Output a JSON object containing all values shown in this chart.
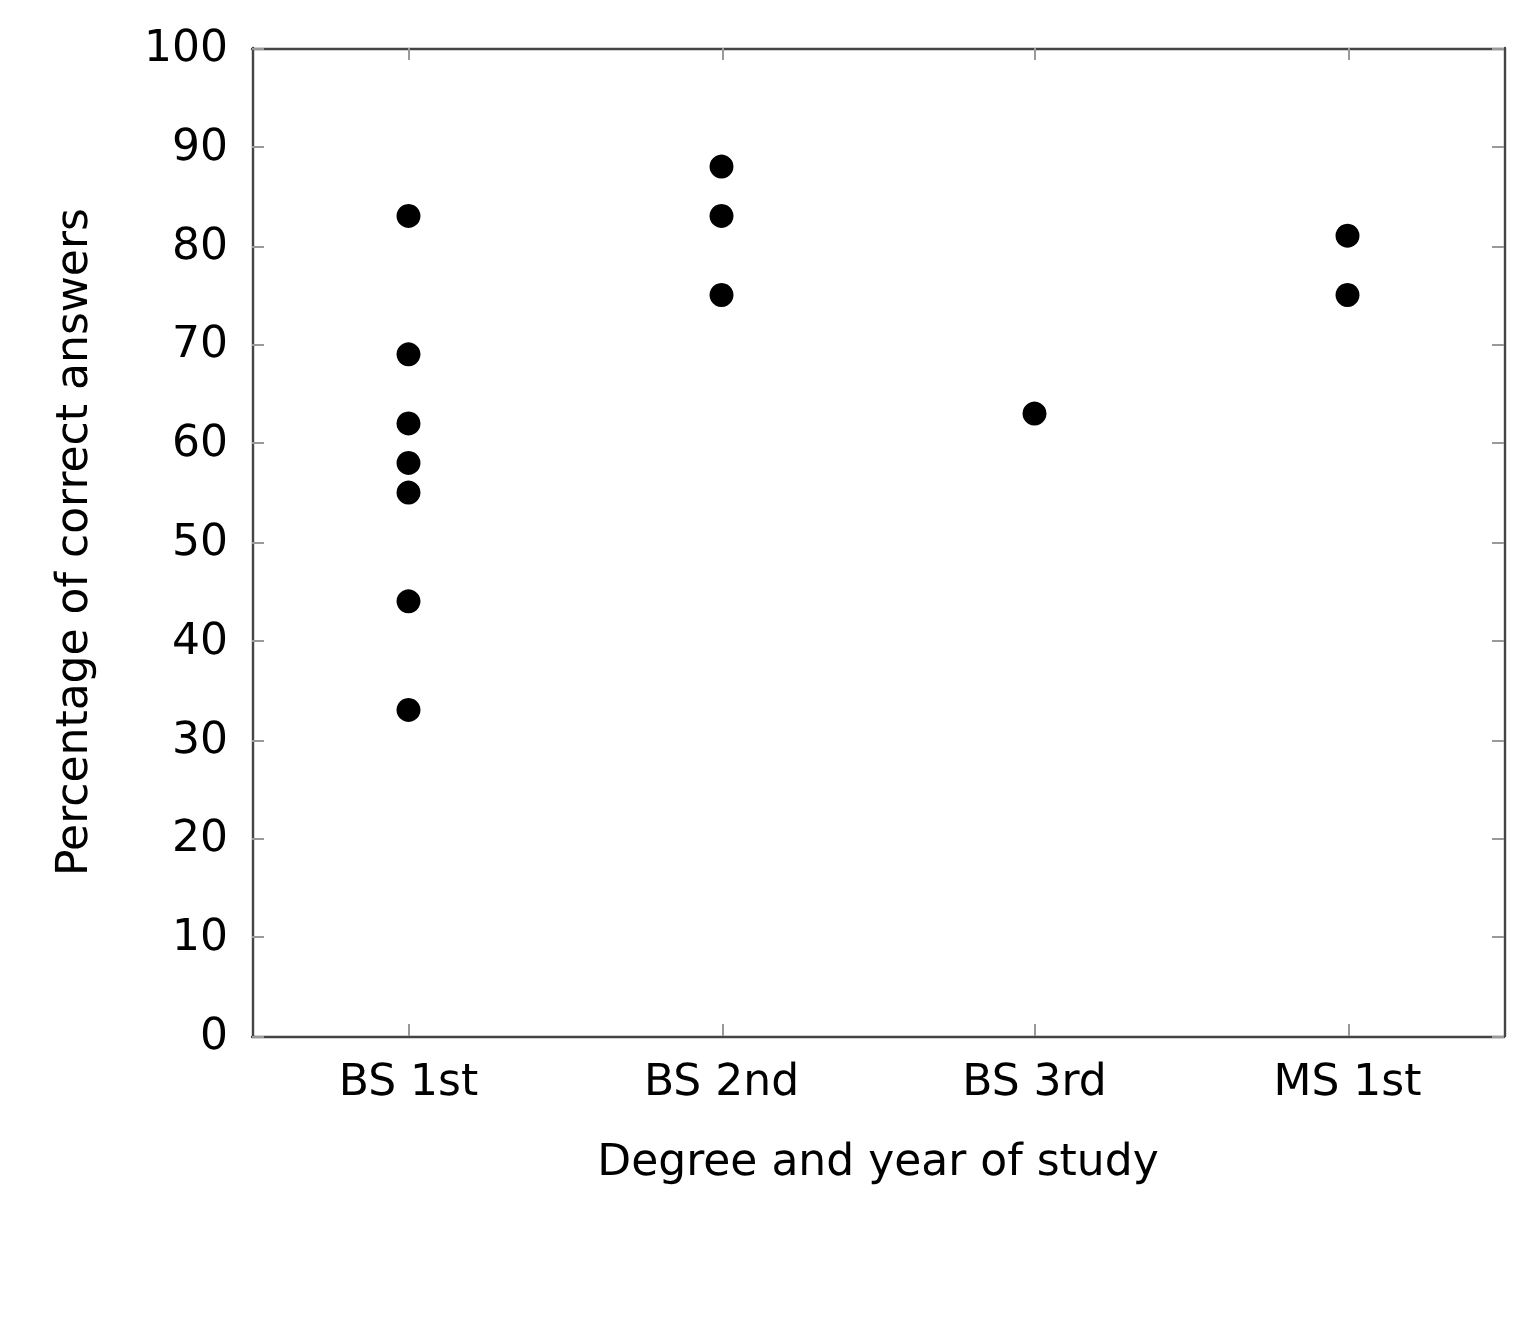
{
  "chart_data": {
    "type": "scatter",
    "xlabel": "Degree and year of study",
    "ylabel": "Percentage of correct answers",
    "categories": [
      "BS 1st",
      "BS 2nd",
      "BS 3rd",
      "MS 1st"
    ],
    "series": [
      {
        "color": "#000000",
        "x": [
          "BS 1st",
          "BS 1st",
          "BS 1st",
          "BS 1st",
          "BS 1st",
          "BS 1st",
          "BS 1st",
          "BS 2nd",
          "BS 2nd",
          "BS 2nd",
          "BS 3rd",
          "MS 1st",
          "MS 1st"
        ],
        "values": [
          83,
          69,
          62,
          58,
          55,
          44,
          33,
          88,
          83,
          75,
          63,
          81,
          75
        ]
      }
    ],
    "ylim": [
      0,
      100
    ],
    "yticks": [
      0,
      10,
      20,
      30,
      40,
      50,
      60,
      70,
      80,
      90,
      100
    ],
    "grid": false,
    "marker": "circle"
  }
}
